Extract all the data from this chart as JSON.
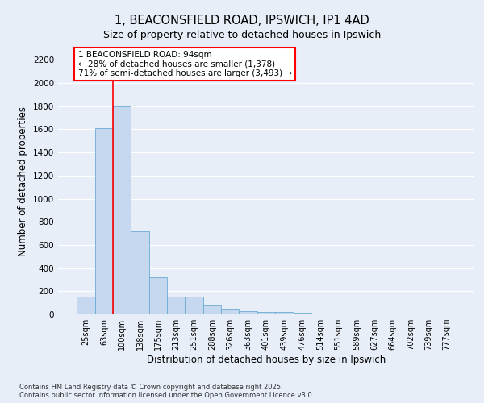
{
  "title": "1, BEACONSFIELD ROAD, IPSWICH, IP1 4AD",
  "subtitle": "Size of property relative to detached houses in Ipswich",
  "xlabel": "Distribution of detached houses by size in Ipswich",
  "ylabel": "Number of detached properties",
  "bar_color": "#c5d8f0",
  "bar_edge_color": "#6aaad4",
  "background_color": "#e8eef8",
  "grid_color": "#ffffff",
  "fig_facecolor": "#e8eef8",
  "categories": [
    "25sqm",
    "63sqm",
    "100sqm",
    "138sqm",
    "175sqm",
    "213sqm",
    "251sqm",
    "288sqm",
    "326sqm",
    "363sqm",
    "401sqm",
    "439sqm",
    "476sqm",
    "514sqm",
    "551sqm",
    "589sqm",
    "627sqm",
    "664sqm",
    "702sqm",
    "739sqm",
    "777sqm"
  ],
  "values": [
    155,
    1610,
    1800,
    720,
    320,
    155,
    155,
    80,
    50,
    25,
    20,
    20,
    15,
    0,
    0,
    0,
    0,
    0,
    0,
    0,
    0
  ],
  "ylim": [
    0,
    2300
  ],
  "yticks": [
    0,
    200,
    400,
    600,
    800,
    1000,
    1200,
    1400,
    1600,
    1800,
    2000,
    2200
  ],
  "red_line_x": 1.5,
  "annotation_text": "1 BEACONSFIELD ROAD: 94sqm\n← 28% of detached houses are smaller (1,378)\n71% of semi-detached houses are larger (3,493) →",
  "footnote": "Contains HM Land Registry data © Crown copyright and database right 2025.\nContains public sector information licensed under the Open Government Licence v3.0."
}
